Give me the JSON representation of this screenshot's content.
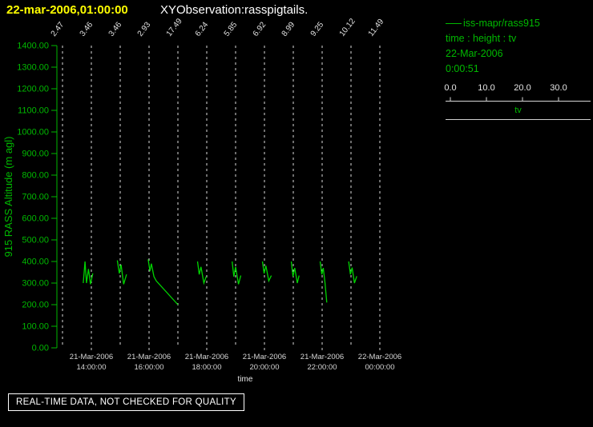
{
  "header": {
    "timestamp": "22-mar-2006,01:00:00",
    "title": "XYObservation:rasspigtails."
  },
  "legend": {
    "series_label": "iss-mapr/rass915",
    "fields": "time : height : tv",
    "date": "22-Mar-2006",
    "time": "0:00:51",
    "scale_ticks": [
      "0.0",
      "10.0",
      "20.0",
      "30.0"
    ],
    "scale_label": "tv"
  },
  "status": {
    "banner": "REAL-TIME DATA, NOT CHECKED FOR QUALITY"
  },
  "colors": {
    "background": "#000000",
    "accent_green": "#00b800",
    "trace_green": "#00d400",
    "highlight_yellow": "#ffff00",
    "grid_white": "#dadada"
  },
  "chart_data": {
    "type": "line",
    "title": "XYObservation:rasspigtails.",
    "xlabel": "time",
    "ylabel": "915 RASS Altitude (m agl)",
    "ylim": [
      0,
      1400
    ],
    "x_start_hour": 13,
    "y_tick_labels": [
      "0.00",
      "100.00",
      "200.00",
      "300.00",
      "400.00",
      "500.00",
      "600.00",
      "700.00",
      "800.00",
      "900.00",
      "1000.00",
      "1100.00",
      "1200.00",
      "1300.00",
      "1400.00"
    ],
    "profiles": [
      {
        "hour": 13,
        "tv": "2.47"
      },
      {
        "hour": 14,
        "tv": "3.46"
      },
      {
        "hour": 15,
        "tv": "3.46"
      },
      {
        "hour": 16,
        "tv": "2.93"
      },
      {
        "hour": 17,
        "tv": "17.49"
      },
      {
        "hour": 18,
        "tv": "6.24"
      },
      {
        "hour": 19,
        "tv": "5.85"
      },
      {
        "hour": 20,
        "tv": "6.92"
      },
      {
        "hour": 21,
        "tv": "8.99"
      },
      {
        "hour": 22,
        "tv": "9.25"
      },
      {
        "hour": 23,
        "tv": "10.12"
      },
      {
        "hour": 24,
        "tv": "11.49"
      }
    ],
    "x_axis_labels": [
      {
        "hour": 14,
        "date": "21-Mar-2006",
        "time": "14:00:00"
      },
      {
        "hour": 16,
        "date": "21-Mar-2006",
        "time": "16:00:00"
      },
      {
        "hour": 18,
        "date": "21-Mar-2006",
        "time": "18:00:00"
      },
      {
        "hour": 20,
        "date": "21-Mar-2006",
        "time": "20:00:00"
      },
      {
        "hour": 22,
        "date": "21-Mar-2006",
        "time": "22:00:00"
      },
      {
        "hour": 24,
        "date": "22-Mar-2006",
        "time": "00:00:00"
      }
    ],
    "series": [
      {
        "name": "iss-mapr/rass915",
        "color": "#00d400",
        "traces": [
          [
            [
              13.72,
              300
            ],
            [
              13.78,
              400
            ],
            [
              13.83,
              300
            ],
            [
              13.9,
              365
            ],
            [
              13.97,
              295
            ],
            [
              14.05,
              345
            ]
          ],
          [
            [
              14.9,
              405
            ],
            [
              14.97,
              345
            ],
            [
              15.03,
              385
            ],
            [
              15.12,
              295
            ],
            [
              15.22,
              340
            ]
          ],
          [
            [
              15.97,
              410
            ],
            [
              16.03,
              355
            ],
            [
              16.08,
              390
            ],
            [
              16.17,
              330
            ],
            [
              16.25,
              310
            ],
            [
              17.0,
              200
            ]
          ],
          [
            [
              17.68,
              400
            ],
            [
              17.74,
              340
            ],
            [
              17.8,
              375
            ],
            [
              17.9,
              300
            ],
            [
              17.98,
              330
            ]
          ],
          [
            [
              18.88,
              400
            ],
            [
              18.94,
              330
            ],
            [
              19.0,
              375
            ],
            [
              19.1,
              295
            ],
            [
              19.18,
              335
            ]
          ],
          [
            [
              19.93,
              400
            ],
            [
              19.99,
              345
            ],
            [
              20.05,
              380
            ],
            [
              20.15,
              310
            ],
            [
              20.24,
              335
            ]
          ],
          [
            [
              20.93,
              400
            ],
            [
              20.99,
              330
            ],
            [
              21.05,
              370
            ],
            [
              21.14,
              300
            ],
            [
              21.2,
              335
            ]
          ],
          [
            [
              21.93,
              400
            ],
            [
              21.99,
              340
            ],
            [
              22.04,
              370
            ],
            [
              22.1,
              300
            ],
            [
              22.16,
              210
            ]
          ],
          [
            [
              22.92,
              400
            ],
            [
              22.98,
              340
            ],
            [
              23.04,
              372
            ],
            [
              23.12,
              300
            ],
            [
              23.2,
              332
            ]
          ]
        ]
      }
    ]
  }
}
